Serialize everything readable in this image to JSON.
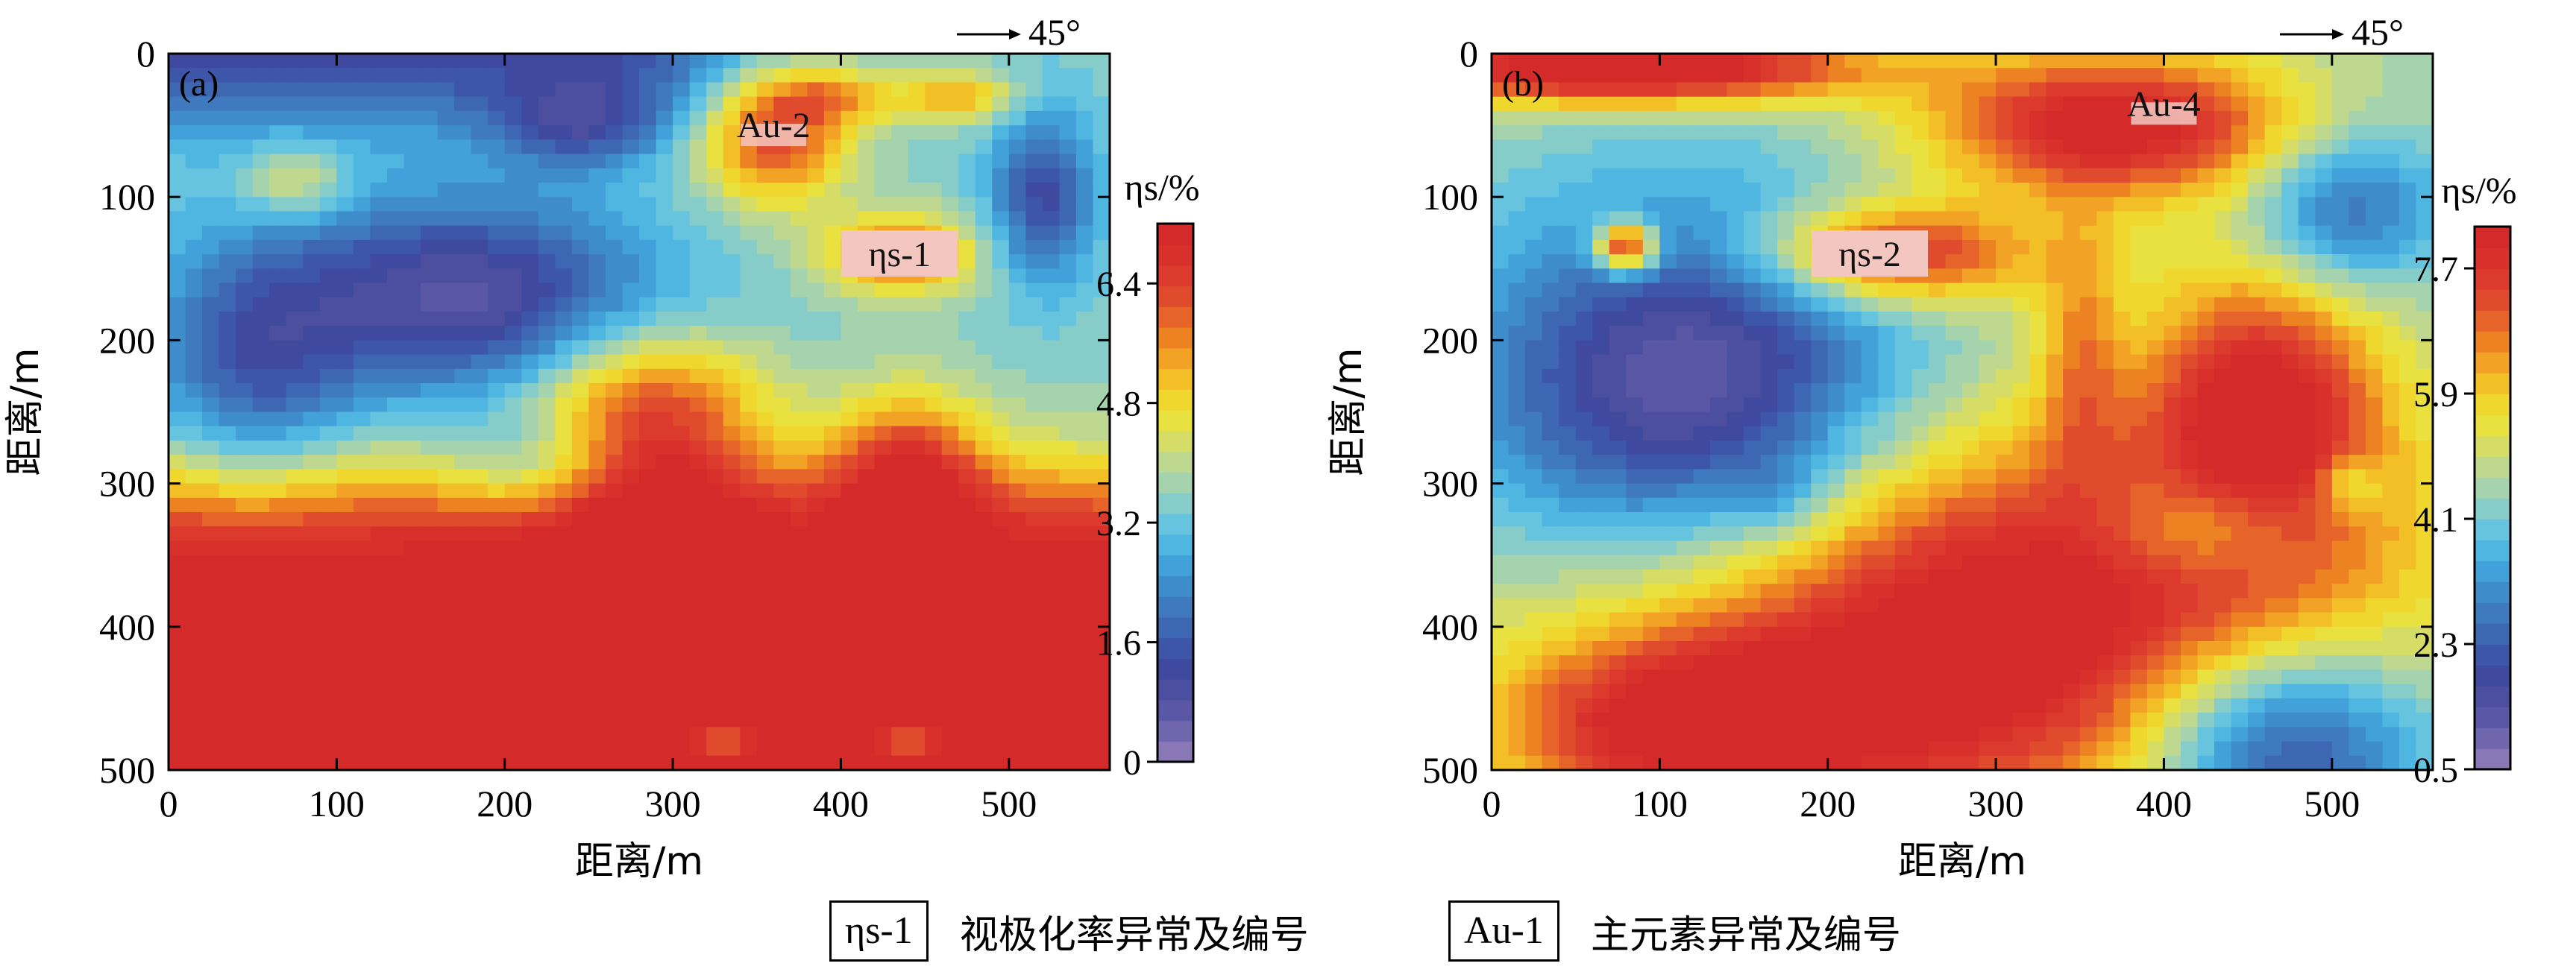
{
  "legend": {
    "eta_box": "ηs-1",
    "eta_text": "视极化率异常及编号",
    "au_box": "Au-1",
    "au_text": "主元素异常及编号"
  },
  "chart_data": [
    {
      "type": "heatmap",
      "panel_label": "(a)",
      "direction_label": "45°",
      "xlabel": "距离/m",
      "ylabel": "距离/m",
      "xlim": [
        0,
        560
      ],
      "ylim": [
        500,
        0
      ],
      "xticks": [
        0,
        100,
        200,
        300,
        400,
        500
      ],
      "yticks": [
        0,
        100,
        200,
        300,
        400,
        500
      ],
      "colorbar": {
        "label": "ηs/%",
        "min": 0,
        "max": 7.2,
        "ticks": [
          0,
          1.6,
          3.2,
          4.8,
          6.4
        ]
      },
      "annotations": [
        {
          "text": "Au-2",
          "x": 360,
          "y": 50,
          "boxed": false
        },
        {
          "text": "ηs-1",
          "x": 435,
          "y": 140,
          "boxed": true
        }
      ],
      "anomalies": [
        {
          "id": "Au-2",
          "x": 360,
          "y": 60
        },
        {
          "id": "ηs-1",
          "x": 435,
          "y": 140
        }
      ]
    },
    {
      "type": "heatmap",
      "panel_label": "(b)",
      "direction_label": "45°",
      "xlabel": "距离/m",
      "ylabel": "距离/m",
      "xlim": [
        0,
        560
      ],
      "ylim": [
        500,
        0
      ],
      "xticks": [
        0,
        100,
        200,
        300,
        400,
        500
      ],
      "yticks": [
        0,
        100,
        200,
        300,
        400,
        500
      ],
      "colorbar": {
        "label": "ηs/%",
        "min": 0.5,
        "max": 8.3,
        "ticks": [
          0.5,
          2.3,
          4.1,
          5.9,
          7.7
        ]
      },
      "annotations": [
        {
          "text": "Au-4",
          "x": 400,
          "y": 35,
          "boxed": false
        },
        {
          "text": "ηs-2",
          "x": 225,
          "y": 140,
          "boxed": true
        }
      ],
      "anomalies": [
        {
          "id": "Au-4",
          "x": 380,
          "y": 60
        },
        {
          "id": "ηs-2",
          "x": 225,
          "y": 140
        }
      ]
    }
  ]
}
